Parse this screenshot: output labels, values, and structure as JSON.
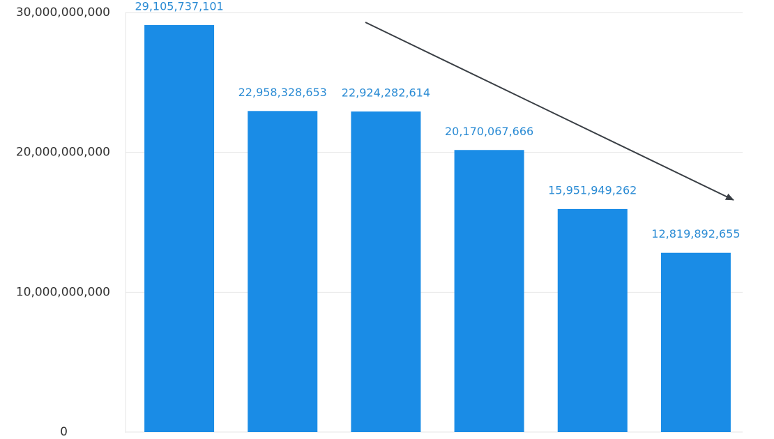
{
  "chart_data": {
    "type": "bar",
    "values": [
      29105737101,
      22958328653,
      22924282614,
      20170067666,
      15951949262,
      12819892655
    ],
    "value_labels": [
      "29,105,737,101",
      "22,958,328,653",
      "22,924,282,614",
      "20,170,067,666",
      "15,951,949,262",
      "12,819,892,655"
    ],
    "color": "#1a8ce6",
    "ylim": [
      0,
      30000000000
    ],
    "yticks": [
      0,
      {
        "value": 10000000000,
        "label": "10,000,000,000"
      },
      {
        "value": 20000000000,
        "label": "20,000,000,000"
      },
      {
        "value": 30000000000,
        "label": "30,000,000,000"
      }
    ],
    "grid": true
  }
}
